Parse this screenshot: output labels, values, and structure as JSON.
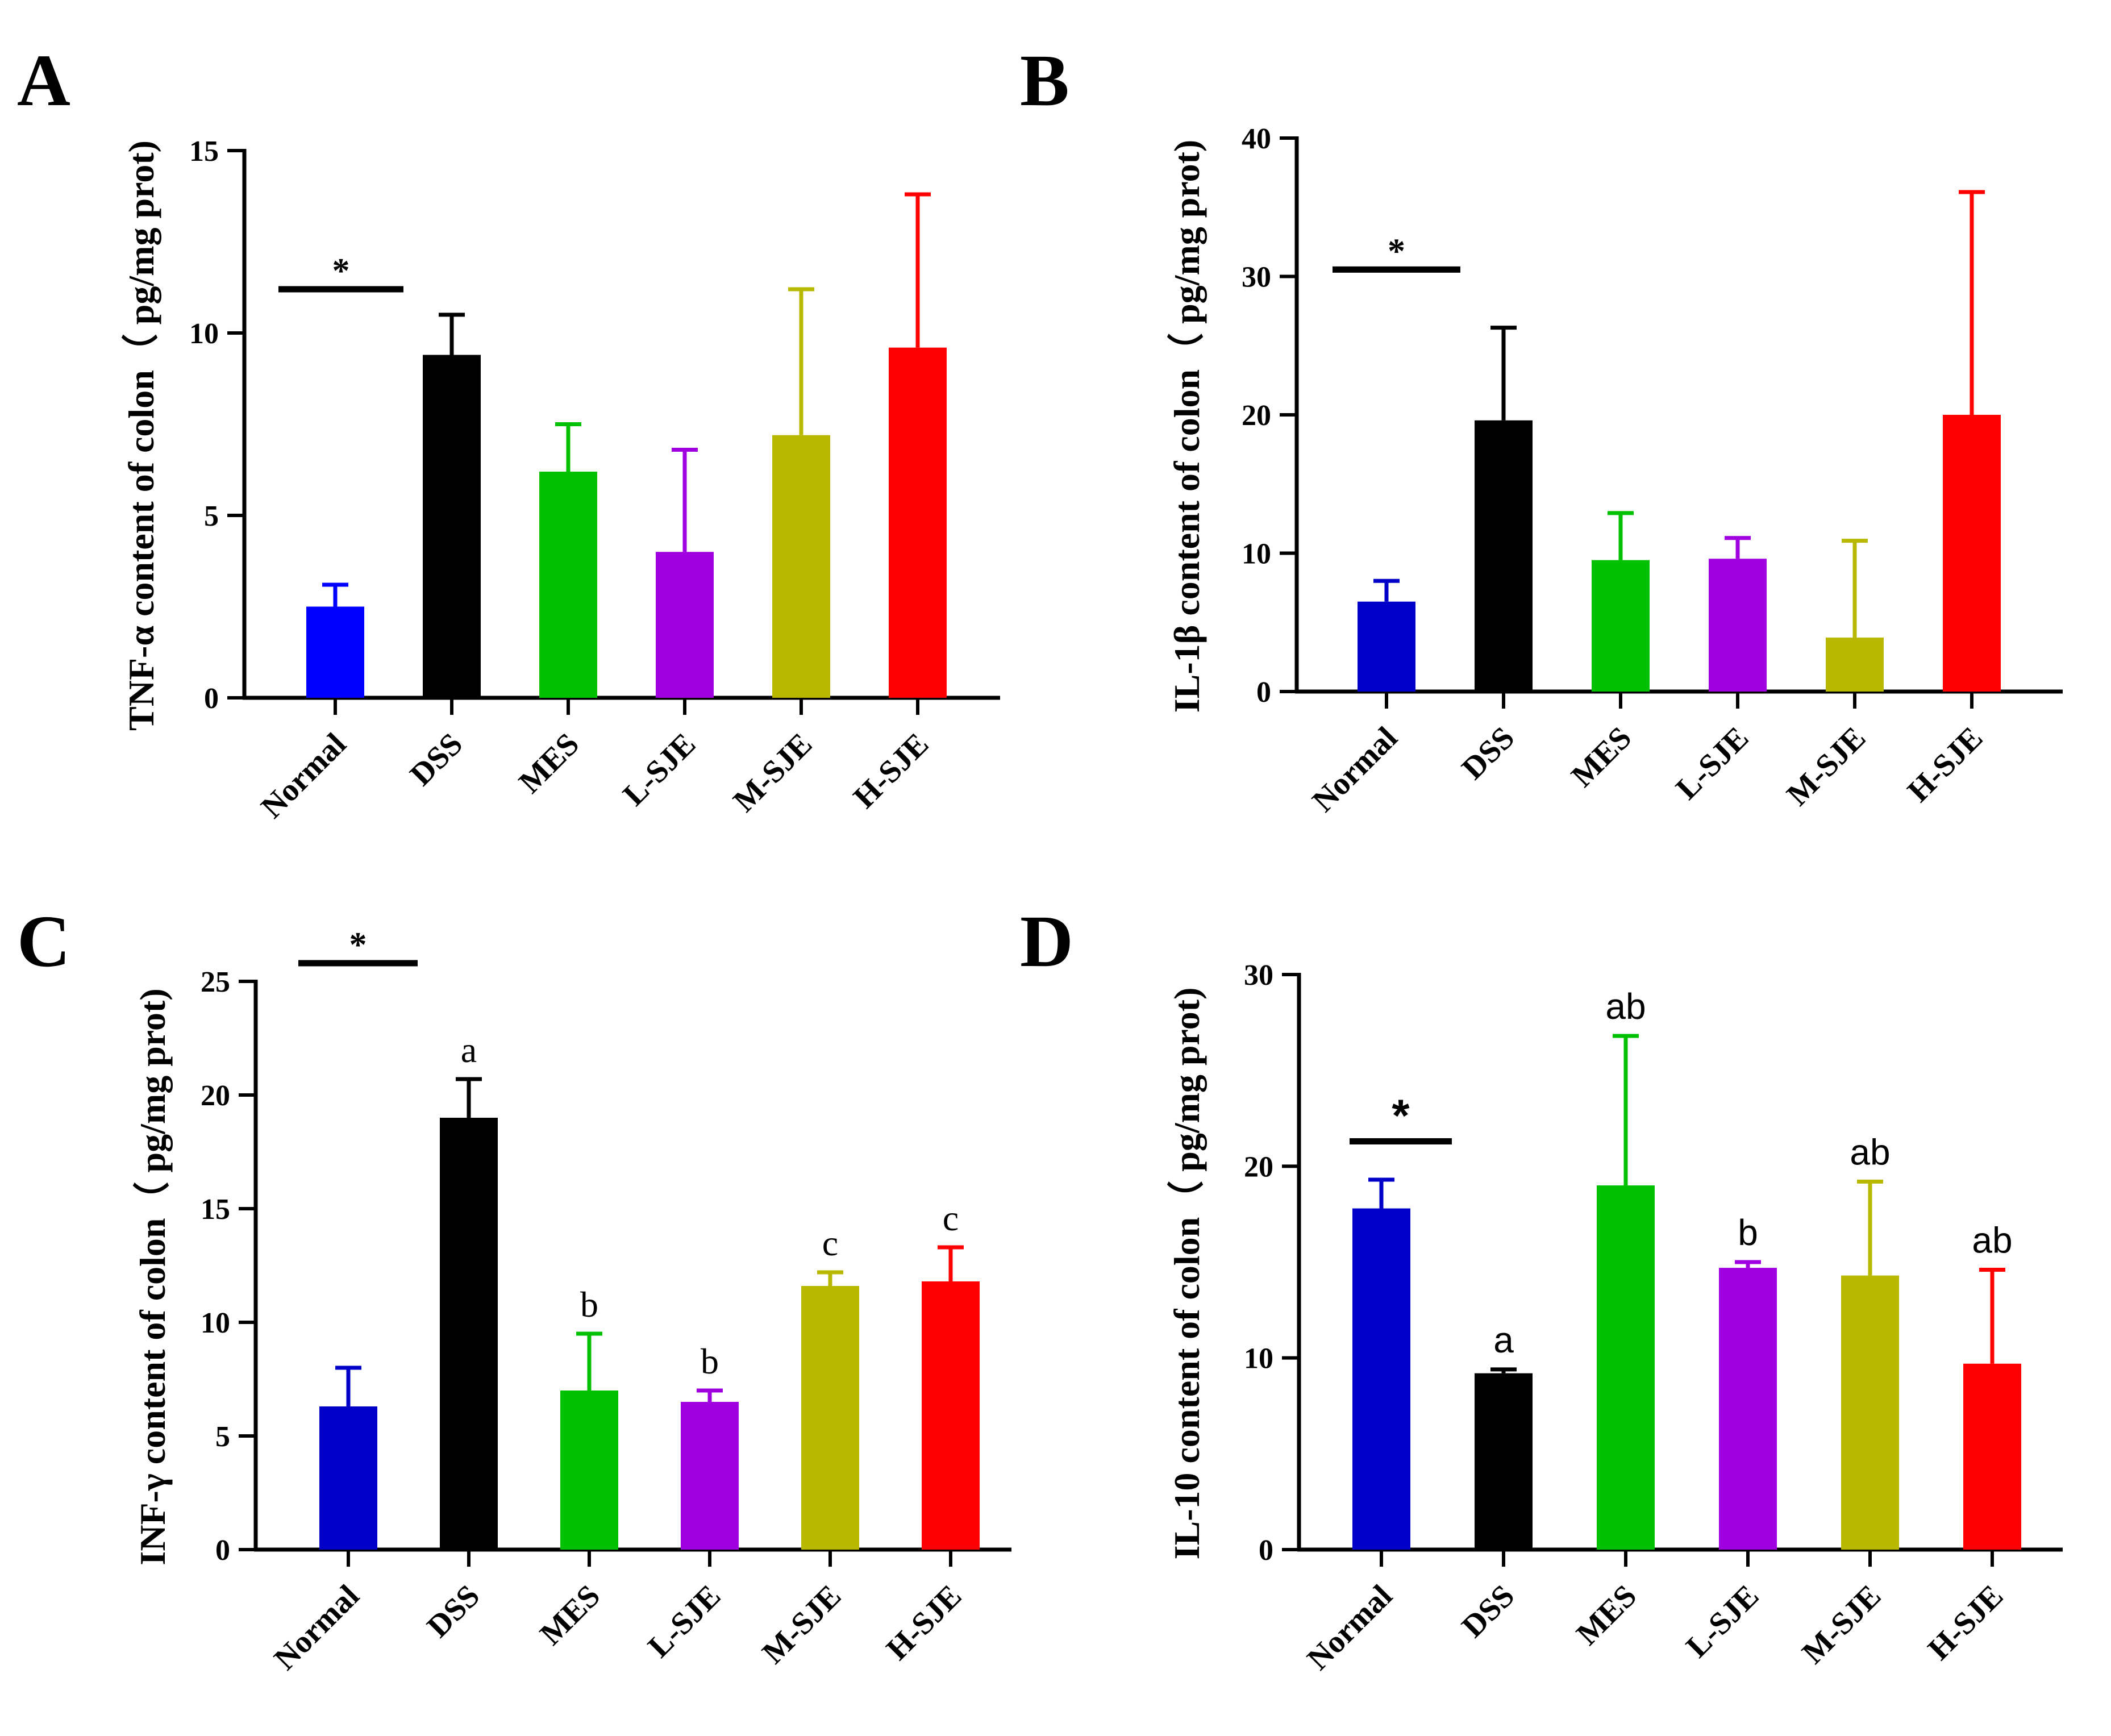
{
  "chart_data": [
    {
      "type": "bar",
      "panel": "A",
      "title": "",
      "ylabel": "TNF-α content of colon（ pg/mg prot)",
      "xlabel": "",
      "categories": [
        "Normal",
        "DSS",
        "MES",
        "L-SJE",
        "M-SJE",
        "H-SJE"
      ],
      "values": [
        2.5,
        9.4,
        6.2,
        4.0,
        7.2,
        9.6
      ],
      "errors": [
        0.6,
        1.1,
        1.3,
        2.8,
        4.0,
        4.2
      ],
      "colors": [
        "#0000ff",
        "#000000",
        "#00c000",
        "#a000e0",
        "#b8b800",
        "#ff0000"
      ],
      "ylim": [
        0,
        15
      ],
      "yticks": [
        0,
        5,
        10,
        15
      ],
      "significance": {
        "symbol": "*",
        "from": "Normal",
        "level": 11.2
      },
      "letters": [
        "",
        "",
        "",
        "",
        "",
        ""
      ]
    },
    {
      "type": "bar",
      "panel": "B",
      "title": "",
      "ylabel": "IL-1β content of colon（ pg/mg prot)",
      "xlabel": "",
      "categories": [
        "Normal",
        "DSS",
        "MES",
        "L-SJE",
        "M-SJE",
        "H-SJE"
      ],
      "values": [
        6.5,
        19.6,
        9.5,
        9.6,
        3.9,
        20.0
      ],
      "errors": [
        1.5,
        6.7,
        3.4,
        1.5,
        7.0,
        16.1
      ],
      "colors": [
        "#0000c8",
        "#000000",
        "#00c000",
        "#a000e0",
        "#b8b800",
        "#ff0000"
      ],
      "ylim": [
        0,
        40
      ],
      "yticks": [
        0,
        10,
        20,
        30,
        40
      ],
      "significance": {
        "symbol": "*",
        "from": "Normal",
        "level": 30.5
      },
      "letters": [
        "",
        "",
        "",
        "",
        "",
        ""
      ]
    },
    {
      "type": "bar",
      "panel": "C",
      "title": "",
      "ylabel": "INF-γ content of colon（ pg/mg prot)",
      "xlabel": "",
      "categories": [
        "Normal",
        "DSS",
        "MES",
        "L-SJE",
        "M-SJE",
        "H-SJE"
      ],
      "values": [
        6.3,
        19.0,
        7.0,
        6.5,
        11.6,
        11.8
      ],
      "errors": [
        1.7,
        1.7,
        2.5,
        0.5,
        0.6,
        1.5
      ],
      "colors": [
        "#0000c8",
        "#000000",
        "#00c000",
        "#a000e0",
        "#b8b800",
        "#ff0000"
      ],
      "ylim": [
        0,
        25
      ],
      "yticks": [
        0,
        5,
        10,
        15,
        20,
        25
      ],
      "significance": {
        "symbol": "*",
        "from": "Normal",
        "level": 25.8
      },
      "letters": [
        "",
        "a",
        "b",
        "b",
        "c",
        "c"
      ]
    },
    {
      "type": "bar",
      "panel": "D",
      "title": "",
      "ylabel": "IL-10 content of colon（ pg/mg prot)",
      "xlabel": "",
      "categories": [
        "Normal",
        "DSS",
        "MES",
        "L-SJE",
        "M-SJE",
        "H-SJE"
      ],
      "values": [
        17.8,
        9.2,
        19.0,
        14.7,
        14.3,
        9.7
      ],
      "errors": [
        1.5,
        0.2,
        7.8,
        0.3,
        4.9,
        4.9
      ],
      "colors": [
        "#0000c8",
        "#000000",
        "#00c000",
        "#a000e0",
        "#b8b800",
        "#ff0000"
      ],
      "ylim": [
        0,
        30
      ],
      "yticks": [
        0,
        10,
        20,
        30
      ],
      "significance": {
        "symbol": "*",
        "from": "Normal",
        "level": 21.3
      },
      "letters": [
        "",
        "a",
        "ab",
        "b",
        "ab",
        "ab"
      ]
    }
  ]
}
